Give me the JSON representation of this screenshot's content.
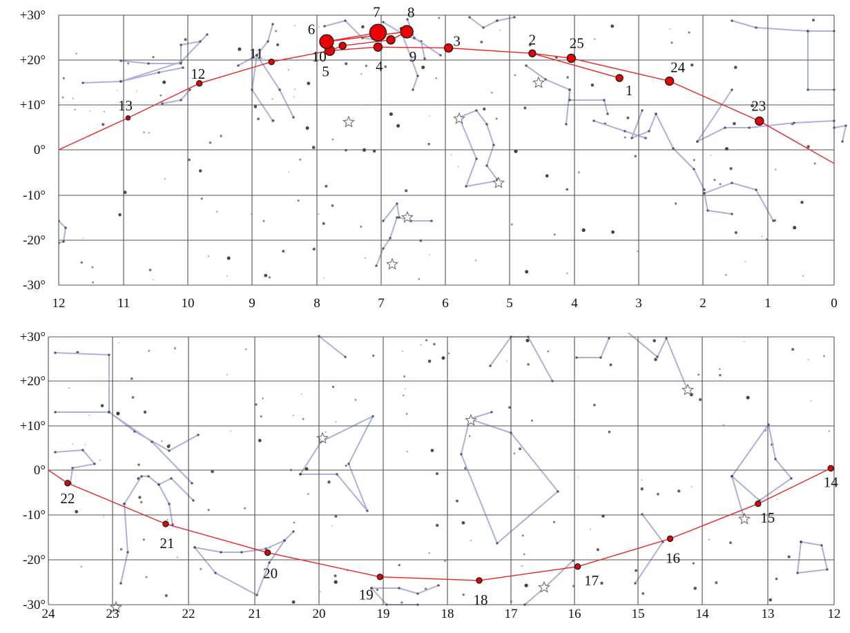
{
  "chart_data": [
    {
      "type": "scatter",
      "x_ticks": [
        "12",
        "11",
        "10",
        "9",
        "8",
        "7",
        "6",
        "5",
        "4",
        "3",
        "2",
        "1",
        "0"
      ],
      "y_ticks": [
        "+30°",
        "+20°",
        "+10°",
        "0°",
        "-10°",
        "-20°",
        "-30°"
      ],
      "xlim": [
        12,
        0
      ],
      "ylim": [
        -30,
        30
      ],
      "grid": true,
      "series": [
        {
          "points": [
            {
              "label": "1",
              "x": 3.3,
              "y": 16.0,
              "size": 5
            },
            {
              "label": "2",
              "x": 4.65,
              "y": 21.5,
              "size": 5
            },
            {
              "label": "3",
              "x": 5.95,
              "y": 22.7,
              "size": 6
            },
            {
              "label": "4",
              "x": 7.05,
              "y": 22.9,
              "size": 6
            },
            {
              "label": "5",
              "x": 7.8,
              "y": 22.1,
              "size": 7
            },
            {
              "label": "6",
              "x": 7.85,
              "y": 24.1,
              "size": 10
            },
            {
              "label": "7",
              "x": 7.05,
              "y": 26.1,
              "size": 12
            },
            {
              "label": "8",
              "x": 6.6,
              "y": 26.3,
              "size": 9
            },
            {
              "label": "9",
              "x": 6.85,
              "y": 24.5,
              "size": 6
            },
            {
              "label": "10",
              "x": 7.6,
              "y": 23.2,
              "size": 5
            },
            {
              "label": "11",
              "x": 8.7,
              "y": 19.6,
              "size": 4
            },
            {
              "label": "12",
              "x": 9.82,
              "y": 14.8,
              "size": 4
            },
            {
              "label": "13",
              "x": 10.93,
              "y": 7.1,
              "size": 3
            },
            {
              "label": "23",
              "x": 1.13,
              "y": 6.4,
              "size": 6
            },
            {
              "label": "24",
              "x": 2.52,
              "y": 15.3,
              "size": 6
            },
            {
              "label": "25",
              "x": 4.05,
              "y": 20.4,
              "size": 6
            }
          ]
        }
      ]
    },
    {
      "type": "scatter",
      "x_ticks": [
        "24",
        "23",
        "22",
        "21",
        "20",
        "19",
        "18",
        "17",
        "16",
        "15",
        "14",
        "13",
        "12"
      ],
      "y_ticks": [
        "+30°",
        "+20°",
        "+10°",
        "0°",
        "-10°",
        "-20°",
        "-30°"
      ],
      "xlim": [
        24,
        12
      ],
      "ylim": [
        -30,
        30
      ],
      "grid": true,
      "series": [
        {
          "points": [
            {
              "label": "14",
              "x": 12.05,
              "y": 0.4,
              "size": 4
            },
            {
              "label": "15",
              "x": 13.15,
              "y": -7.5,
              "size": 4
            },
            {
              "label": "16",
              "x": 14.5,
              "y": -15.3,
              "size": 4
            },
            {
              "label": "17",
              "x": 15.95,
              "y": -21.5,
              "size": 4
            },
            {
              "label": "18",
              "x": 17.5,
              "y": -24.6,
              "size": 4
            },
            {
              "label": "19",
              "x": 19.05,
              "y": -23.8,
              "size": 4
            },
            {
              "label": "20",
              "x": 20.8,
              "y": -18.4,
              "size": 4
            },
            {
              "label": "21",
              "x": 22.3,
              "y": -12.0,
              "size": 4
            },
            {
              "label": "22",
              "x": 23.7,
              "y": -2.9,
              "size": 4
            }
          ]
        }
      ]
    }
  ]
}
